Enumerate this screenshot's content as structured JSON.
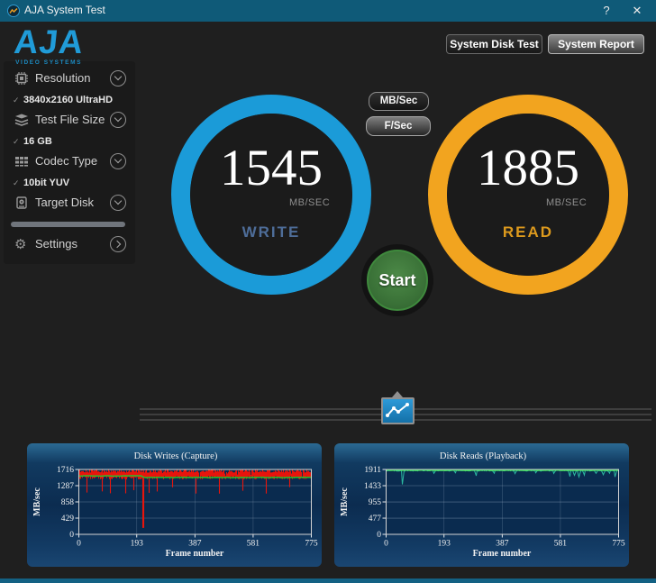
{
  "titlebar": {
    "title": "AJA System Test",
    "help": "?",
    "close": "✕"
  },
  "logo": {
    "text": "AJA",
    "subtext": "VIDEO SYSTEMS"
  },
  "header_buttons": {
    "disk_test": "System Disk Test",
    "report": "System Report"
  },
  "sidebar": {
    "check_glyph": "✓",
    "items": [
      {
        "label": "Resolution",
        "value": "3840x2160 UltraHD"
      },
      {
        "label": "Test File Size",
        "value": "16 GB"
      },
      {
        "label": "Codec Type",
        "value": "10bit YUV"
      },
      {
        "label": "Target Disk",
        "value": ""
      },
      {
        "label": "Settings",
        "value": ""
      }
    ]
  },
  "gauges": {
    "write": {
      "value": "1545",
      "unit": "MB/SEC",
      "label": "WRITE",
      "ring_color": "#1b9bd8",
      "label_color": "#4e6d99"
    },
    "read": {
      "value": "1885",
      "unit": "MB/SEC",
      "label": "READ",
      "ring_color": "#f2a41f",
      "label_color": "#dd9a1d"
    }
  },
  "unit_buttons": {
    "mbsec": "MB/Sec",
    "fsec": "F/Sec"
  },
  "start_button": {
    "label": "Start"
  },
  "chart_data": [
    {
      "type": "line",
      "title": "Disk Writes (Capture)",
      "ylabel": "MB/sec",
      "xlabel": "Frame number",
      "yticks": [
        0,
        429,
        858,
        1287,
        1716
      ],
      "xticks": [
        0,
        193,
        387,
        581,
        775
      ],
      "ylim": [
        0,
        1716
      ],
      "xlim": [
        0,
        775
      ],
      "grid": true,
      "legend": "none",
      "series": [
        {
          "name": "write-rate",
          "color": "#e8150c",
          "style": "band",
          "band_top": 1716,
          "base": 1500,
          "noise": 90,
          "dip_period": 26,
          "dip_depth": 1170,
          "deep_dips": [
            {
              "x": 215,
              "y": 170
            }
          ]
        },
        {
          "name": "write-average",
          "color": "#25c22c",
          "style": "line",
          "segments": [
            {
              "from": 0,
              "to": 215,
              "y": 1545
            },
            {
              "from": 215,
              "to": 775,
              "y": 1505
            }
          ]
        }
      ]
    },
    {
      "type": "line",
      "title": "Disk Reads (Playback)",
      "ylabel": "MB/sec",
      "xlabel": "Frame number",
      "yticks": [
        0,
        477,
        955,
        1433,
        1911
      ],
      "xticks": [
        0,
        193,
        387,
        581,
        775
      ],
      "ylim": [
        0,
        1911
      ],
      "xlim": [
        0,
        775
      ],
      "grid": true,
      "legend": "none",
      "series": [
        {
          "name": "read-rate",
          "color": "#2bb7a0",
          "style": "spikes",
          "base": 1878,
          "noise": 16,
          "dips": [
            [
              55,
              1470
            ],
            [
              160,
              1798
            ],
            [
              230,
              1812
            ],
            [
              300,
              1725
            ],
            [
              360,
              1800
            ],
            [
              430,
              1788
            ],
            [
              500,
              1812
            ],
            [
              560,
              1795
            ],
            [
              612,
              1705
            ],
            [
              628,
              1738
            ],
            [
              643,
              1690
            ],
            [
              660,
              1745
            ],
            [
              700,
              1798
            ],
            [
              724,
              1755
            ],
            [
              744,
              1800
            ],
            [
              764,
              1690
            ]
          ]
        },
        {
          "name": "read-average",
          "color": "#33e052",
          "style": "line",
          "segments": [
            {
              "from": 0,
              "to": 775,
              "y": 1888
            }
          ]
        }
      ]
    }
  ]
}
